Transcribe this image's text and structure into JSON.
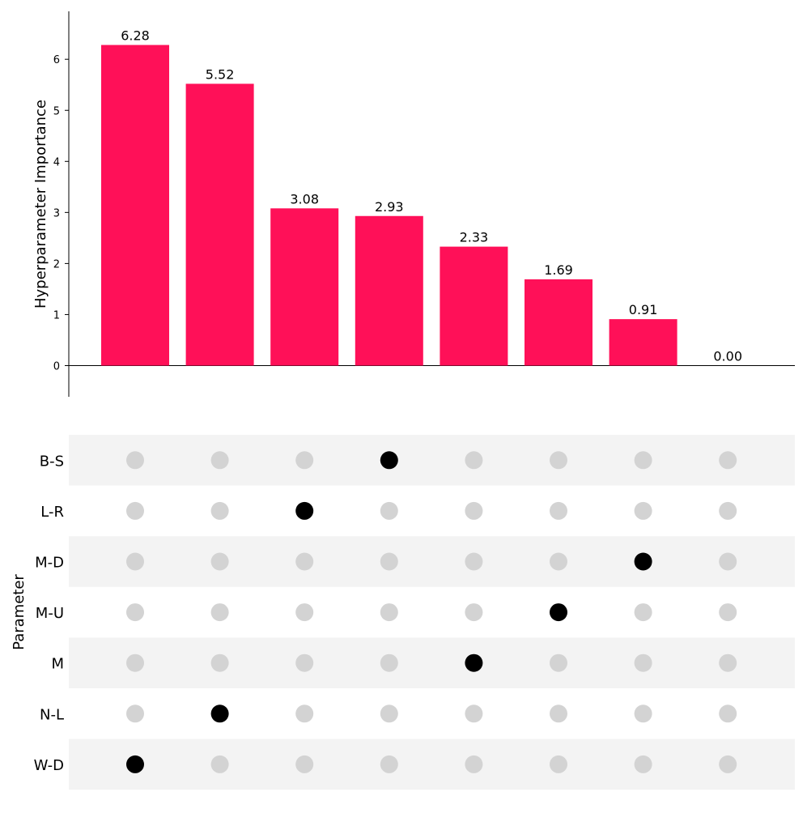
{
  "chart_data": [
    {
      "type": "bar",
      "ylabel": "Hyperparameter Importance",
      "ylim": [
        -0.6,
        6.9
      ],
      "yticks": [
        "0",
        "1",
        "2",
        "3",
        "4",
        "5",
        "6"
      ],
      "values": [
        6.28,
        5.52,
        3.08,
        2.93,
        2.33,
        1.69,
        0.91,
        0.0
      ],
      "labels": [
        "6.28",
        "5.52",
        "3.08",
        "2.93",
        "2.33",
        "1.69",
        "0.91",
        "0.00"
      ],
      "bar_color": "#ff1058",
      "grid": false
    },
    {
      "type": "matrix",
      "ylabel": "Parameter",
      "rows": [
        "B-S",
        "L-R",
        "M-D",
        "M-U",
        "M",
        "N-L",
        "W-D"
      ],
      "columns": 8,
      "active": [
        {
          "row": "B-S",
          "column": 4
        },
        {
          "row": "L-R",
          "column": 3
        },
        {
          "row": "M-D",
          "column": 7
        },
        {
          "row": "M-U",
          "column": 6
        },
        {
          "row": "M",
          "column": 5
        },
        {
          "row": "N-L",
          "column": 2
        },
        {
          "row": "W-D",
          "column": 1
        }
      ],
      "active_color": "#000000",
      "inactive_color": "#d3d3d3",
      "stripe_color": "#f3f3f3"
    }
  ]
}
